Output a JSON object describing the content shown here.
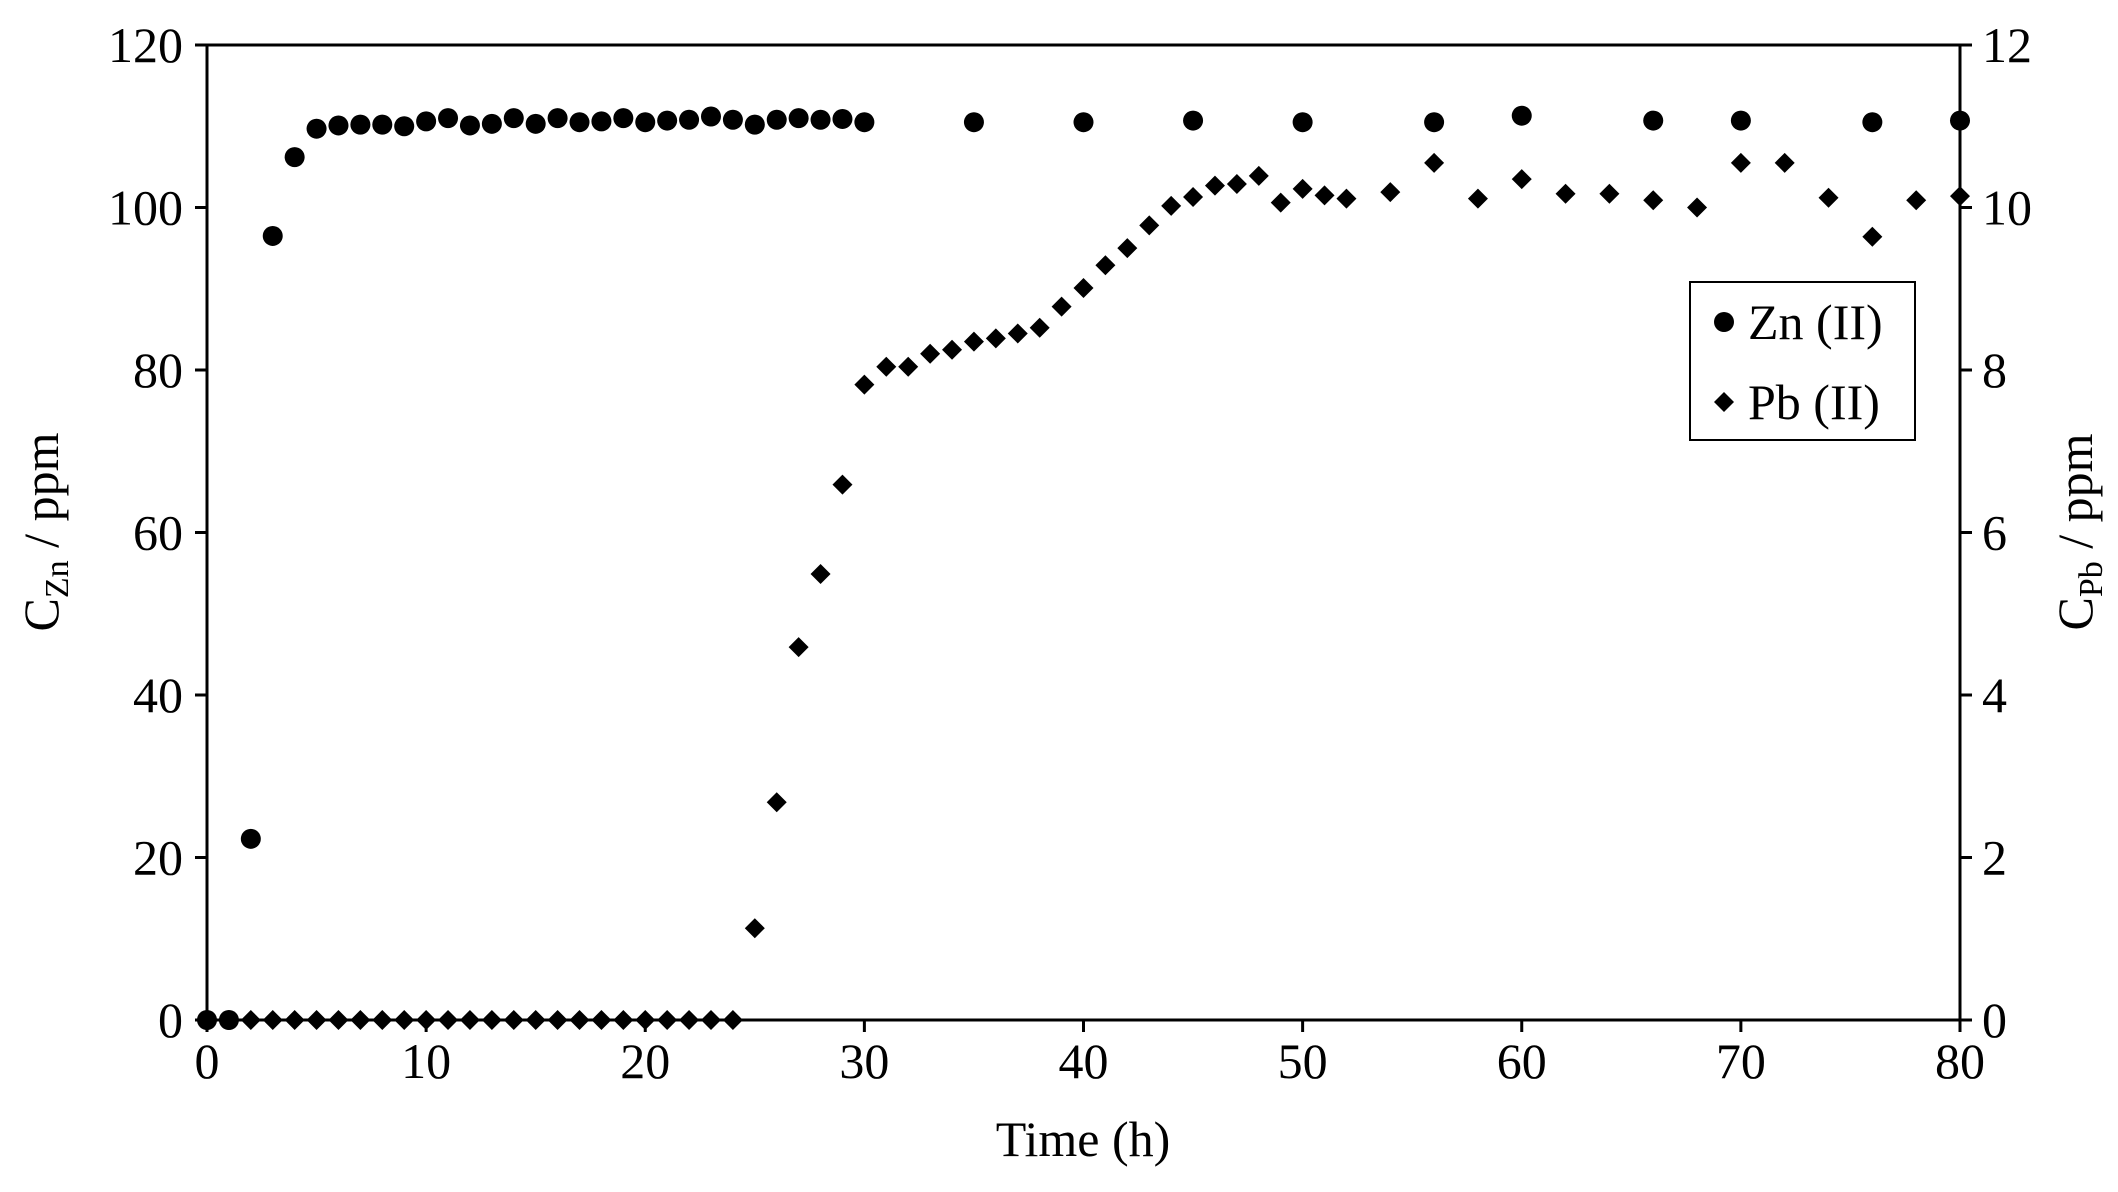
{
  "chart_data": {
    "type": "scatter",
    "title": "",
    "xlabel": "Time (h)",
    "ylabel_left": {
      "main": "C",
      "sub": "Zn",
      "unit": " / ppm"
    },
    "ylabel_right": {
      "main": "C",
      "sub": "Pb",
      "unit": " / ppm"
    },
    "xlim": [
      0,
      80
    ],
    "ylim_left": [
      0,
      120
    ],
    "ylim_right": [
      0,
      12
    ],
    "xticks": [
      0,
      10,
      20,
      30,
      40,
      50,
      60,
      70,
      80
    ],
    "yticks_left": [
      0,
      20,
      40,
      60,
      80,
      100,
      120
    ],
    "yticks_right": [
      0,
      2,
      4,
      6,
      8,
      10,
      12
    ],
    "grid": false,
    "legend_position": "right",
    "colors": {
      "marker": "#000000",
      "axis": "#000000",
      "background": "#ffffff"
    },
    "series": [
      {
        "name": "Zn (II)",
        "marker": "circle",
        "axis": "left",
        "x": [
          0,
          1,
          2,
          3,
          4,
          5,
          6,
          7,
          8,
          9,
          10,
          11,
          12,
          13,
          14,
          15,
          16,
          17,
          18,
          19,
          20,
          21,
          22,
          23,
          24,
          25,
          26,
          27,
          28,
          29,
          30,
          35,
          40,
          45,
          50,
          56,
          60,
          66,
          70,
          76,
          80
        ],
        "y": [
          0,
          0,
          22.3,
          96.5,
          106.2,
          109.7,
          110.1,
          110.2,
          110.2,
          110.0,
          110.6,
          111.0,
          110.1,
          110.3,
          111.0,
          110.3,
          111.0,
          110.5,
          110.6,
          111.0,
          110.5,
          110.7,
          110.8,
          111.2,
          110.8,
          110.2,
          110.8,
          111.0,
          110.8,
          110.9,
          110.5,
          110.5,
          110.5,
          110.7,
          110.5,
          110.5,
          111.3,
          110.7,
          110.7,
          110.5,
          110.7
        ]
      },
      {
        "name": "Pb (II)",
        "marker": "diamond",
        "axis": "right",
        "x": [
          0,
          1,
          2,
          3,
          4,
          5,
          6,
          7,
          8,
          9,
          10,
          11,
          12,
          13,
          14,
          15,
          16,
          17,
          18,
          19,
          20,
          21,
          22,
          23,
          24,
          25,
          26,
          27,
          28,
          29,
          30,
          31,
          32,
          33,
          34,
          35,
          36,
          37,
          38,
          39,
          40,
          41,
          42,
          43,
          44,
          45,
          46,
          47,
          48,
          49,
          50,
          51,
          52,
          54,
          56,
          58,
          60,
          62,
          64,
          66,
          68,
          70,
          72,
          74,
          76,
          78,
          80
        ],
        "y": [
          0,
          0,
          0,
          0,
          0,
          0,
          0,
          0,
          0,
          0,
          0,
          0,
          0,
          0,
          0,
          0,
          0,
          0,
          0,
          0,
          0,
          0,
          0,
          0,
          0,
          1.13,
          2.68,
          4.59,
          5.49,
          6.59,
          7.82,
          8.04,
          8.04,
          8.2,
          8.25,
          8.35,
          8.39,
          8.45,
          8.52,
          8.78,
          9.01,
          9.29,
          9.5,
          9.78,
          10.02,
          10.13,
          10.27,
          10.29,
          10.39,
          10.06,
          10.23,
          10.15,
          10.11,
          10.19,
          10.55,
          10.11,
          10.35,
          10.17,
          10.17,
          10.09,
          10.0,
          10.55,
          10.55,
          10.12,
          9.64,
          10.09,
          10.14
        ]
      }
    ]
  }
}
